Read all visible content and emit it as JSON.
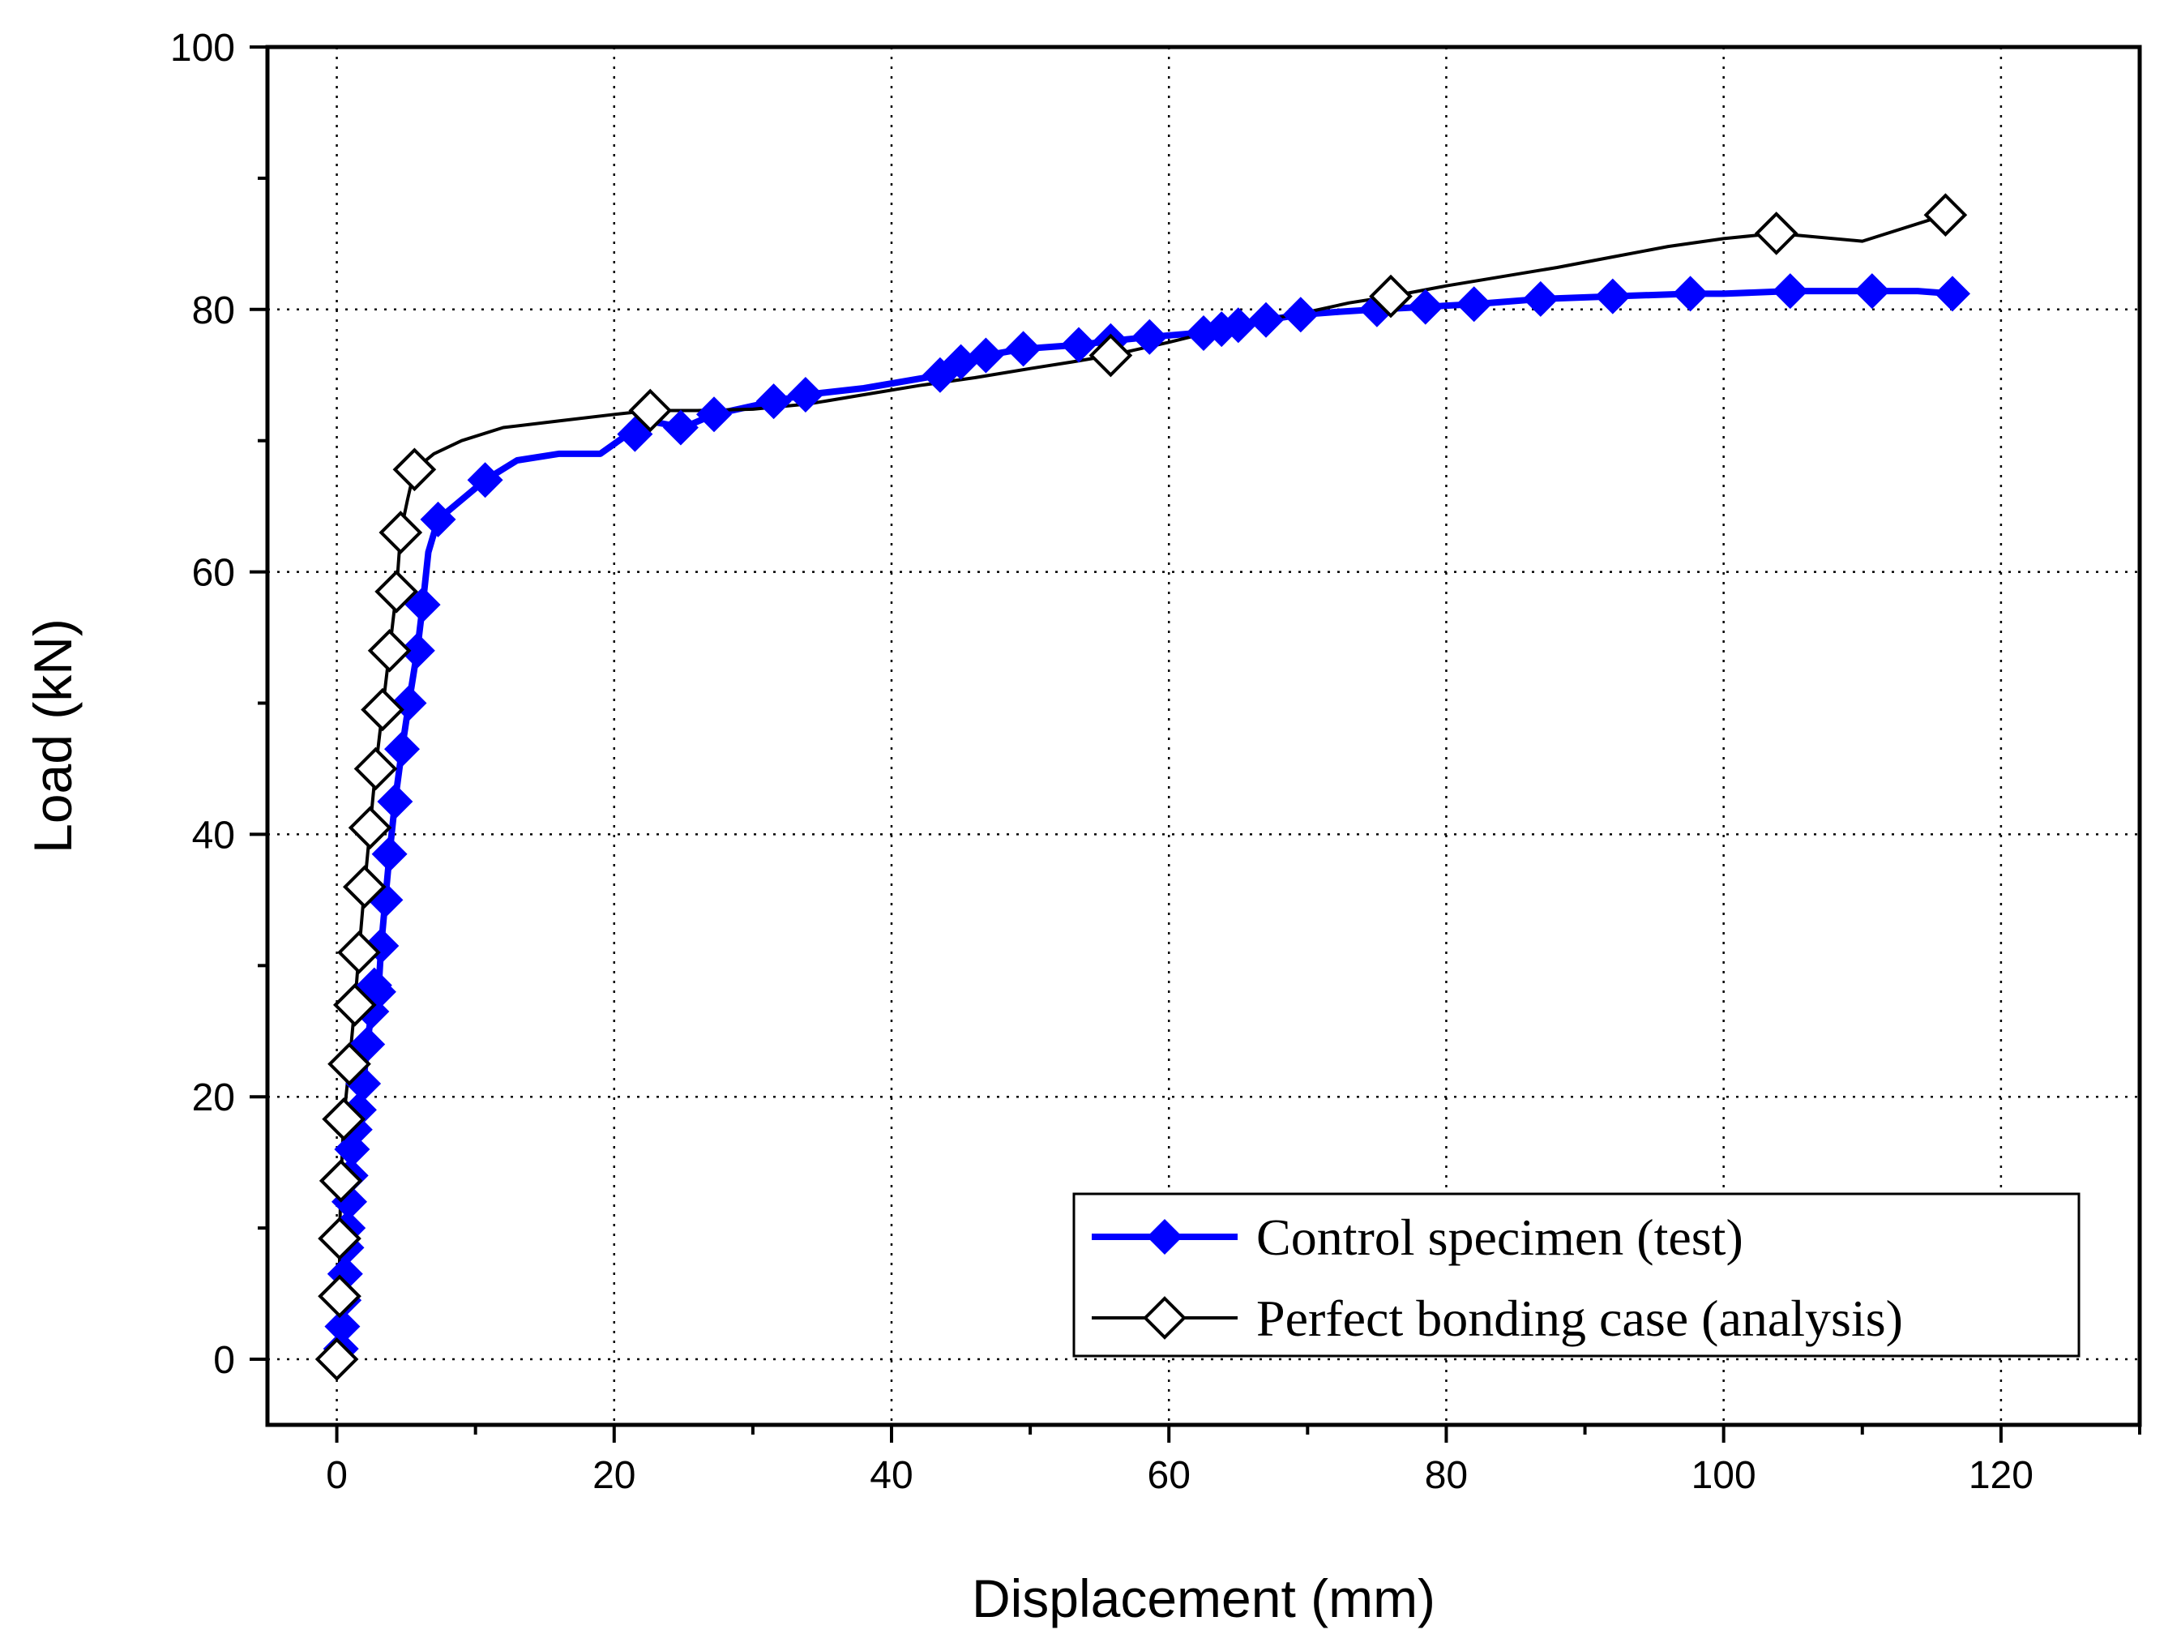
{
  "chart_data": {
    "type": "line",
    "xlabel": "Displacement (mm)",
    "ylabel": "Load (kN)",
    "xlim": [
      -5,
      130
    ],
    "ylim": [
      -5,
      100
    ],
    "xticks": [
      0,
      20,
      40,
      60,
      80,
      100,
      120
    ],
    "yticks": [
      0,
      20,
      40,
      60,
      80,
      100
    ],
    "grid": true,
    "legend_position": "bottom-right",
    "series": [
      {
        "name": "Control specimen (test)",
        "color": "#0000ff",
        "marker": "filled-diamond",
        "x": [
          0.3,
          0.4,
          0.5,
          0.6,
          0.7,
          0.8,
          0.9,
          1.0,
          1.1,
          1.3,
          1.6,
          1.9,
          2.2,
          2.5,
          2.7,
          3.0,
          3.2,
          3.5,
          3.8,
          4.2,
          4.7,
          5.2,
          5.8,
          6.2,
          6.6,
          7.3,
          9.0,
          10.7,
          13.0,
          16.0,
          19.0,
          21.0,
          22.5,
          25.0,
          27.2,
          31.5,
          33.8,
          38.0,
          43.5,
          45.0,
          46.8,
          49.5,
          53.5,
          55.8,
          58.6,
          62.0,
          63.5,
          65.0,
          67.0,
          69.5,
          72.0,
          75.0,
          78.5,
          82.0,
          86.8,
          92.0,
          97.6,
          100.0,
          104.8,
          108.0,
          110.7,
          114.0,
          116.5
        ],
        "y": [
          0.8,
          2.5,
          4.5,
          6.5,
          8.5,
          10.0,
          12.0,
          14.0,
          16.0,
          17.5,
          19.0,
          21.0,
          24.0,
          26.5,
          28.5,
          28.0,
          31.5,
          35.0,
          38.5,
          42.5,
          46.5,
          50.0,
          54.0,
          57.5,
          61.5,
          64.0,
          65.5,
          67.0,
          68.5,
          69.0,
          69.0,
          70.5,
          71.5,
          71.0,
          72.0,
          73.0,
          73.5,
          74.0,
          75.0,
          76.0,
          76.5,
          77.0,
          77.3,
          77.6,
          77.9,
          78.2,
          78.5,
          78.8,
          79.2,
          79.6,
          79.8,
          80.0,
          80.2,
          80.4,
          80.8,
          81.0,
          81.2,
          81.2,
          81.4,
          81.4,
          81.4,
          81.4,
          81.2
        ],
        "marker_x": [
          0.3,
          0.4,
          0.5,
          0.6,
          0.7,
          0.8,
          0.9,
          1.0,
          1.1,
          1.3,
          1.6,
          1.9,
          2.2,
          2.5,
          2.7,
          3.0,
          3.2,
          3.5,
          3.8,
          4.2,
          4.7,
          5.2,
          5.8,
          6.2,
          7.3,
          10.7,
          21.5,
          24.8,
          27.2,
          31.5,
          33.8,
          43.5,
          45.0,
          46.8,
          49.5,
          53.5,
          55.8,
          58.6,
          62.5,
          63.8,
          65.0,
          67.0,
          69.5,
          75.0,
          78.5,
          82.0,
          86.8,
          92.0,
          97.6,
          104.8,
          110.7,
          116.5
        ],
        "marker_y": [
          0.8,
          2.5,
          4.5,
          6.5,
          8.5,
          10.0,
          12.0,
          14.0,
          16.0,
          17.5,
          19.0,
          21.0,
          24.0,
          26.5,
          28.5,
          28.0,
          31.5,
          35.0,
          38.5,
          42.5,
          46.5,
          50.0,
          54.0,
          57.5,
          64.0,
          67.0,
          70.5,
          71.0,
          72.0,
          73.0,
          73.5,
          75.0,
          76.0,
          76.5,
          77.0,
          77.3,
          77.6,
          77.9,
          78.2,
          78.5,
          78.8,
          79.2,
          79.6,
          80.0,
          80.2,
          80.4,
          80.8,
          81.0,
          81.2,
          81.4,
          81.4,
          81.2
        ]
      },
      {
        "name": "Perfect bonding case (analysis)",
        "color": "#000000",
        "marker": "open-diamond",
        "x": [
          0,
          0.2,
          0.2,
          0.3,
          0.5,
          0.9,
          1.3,
          1.6,
          2.0,
          2.4,
          2.8,
          3.3,
          3.8,
          4.3,
          4.6,
          5.1,
          5.6,
          7.0,
          9.0,
          12.0,
          16.0,
          20.0,
          22.6,
          26.0,
          30.0,
          34.0,
          38.0,
          42.0,
          46.0,
          50.0,
          53.0,
          55.8,
          60.0,
          65.0,
          70.0,
          73.0,
          76.0,
          80.0,
          84.0,
          88.0,
          92.0,
          96.0,
          100.0,
          103.8,
          110.0,
          116.0
        ],
        "y": [
          0,
          4.8,
          9.2,
          13.6,
          18.3,
          22.5,
          27.0,
          31.0,
          36.0,
          40.5,
          45.0,
          49.5,
          54.0,
          58.5,
          63.0,
          65.5,
          67.8,
          69.0,
          70.0,
          71.0,
          71.5,
          72.0,
          72.3,
          72.3,
          72.4,
          72.8,
          73.5,
          74.2,
          74.8,
          75.5,
          76.0,
          76.5,
          77.5,
          78.8,
          79.8,
          80.5,
          81.0,
          81.8,
          82.5,
          83.2,
          84.0,
          84.8,
          85.4,
          85.8,
          85.2,
          87.2
        ],
        "marker_x": [
          0,
          0.2,
          0.2,
          0.3,
          0.5,
          0.9,
          1.3,
          1.6,
          2.0,
          2.4,
          2.8,
          3.3,
          3.8,
          4.3,
          4.6,
          5.6,
          22.6,
          55.8,
          76.0,
          103.8,
          116.0
        ],
        "marker_y": [
          0,
          4.8,
          9.2,
          13.6,
          18.3,
          22.5,
          27.0,
          31.0,
          36.0,
          40.5,
          45.0,
          49.5,
          54.0,
          58.5,
          63.0,
          67.8,
          72.3,
          76.5,
          81.0,
          85.8,
          87.2
        ]
      }
    ]
  }
}
